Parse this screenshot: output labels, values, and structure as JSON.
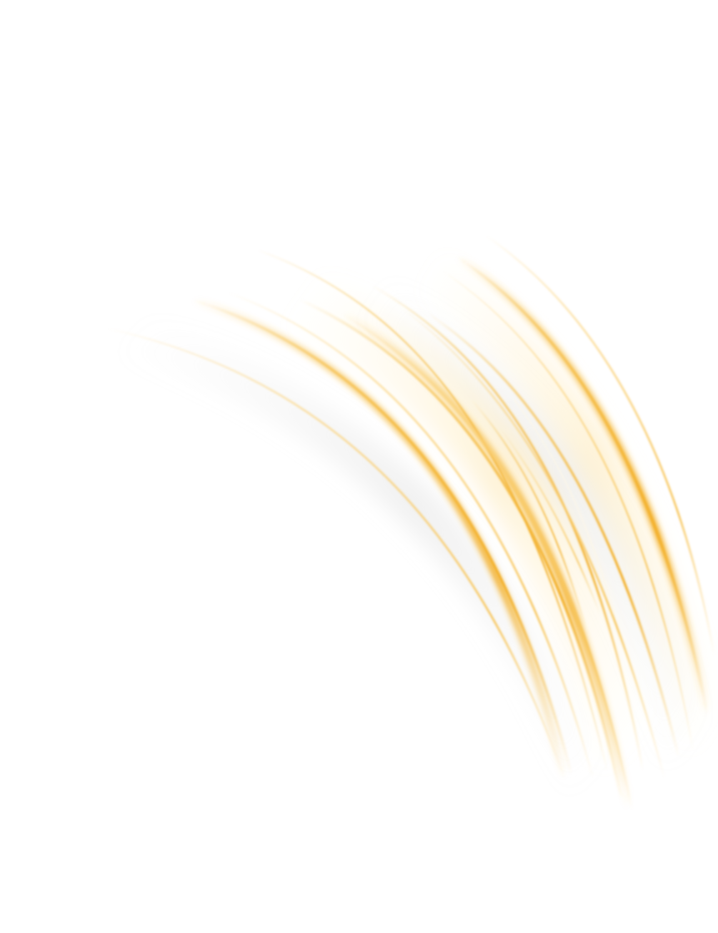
{
  "background": {
    "color": "#ffffff"
  },
  "artwork": {
    "icon": "light-streaks-graphic",
    "description_colors": {
      "primary": "#f5b93a",
      "secondary": "#fbd27a",
      "highlight": "#fff1c9"
    },
    "streak_count": 14
  }
}
